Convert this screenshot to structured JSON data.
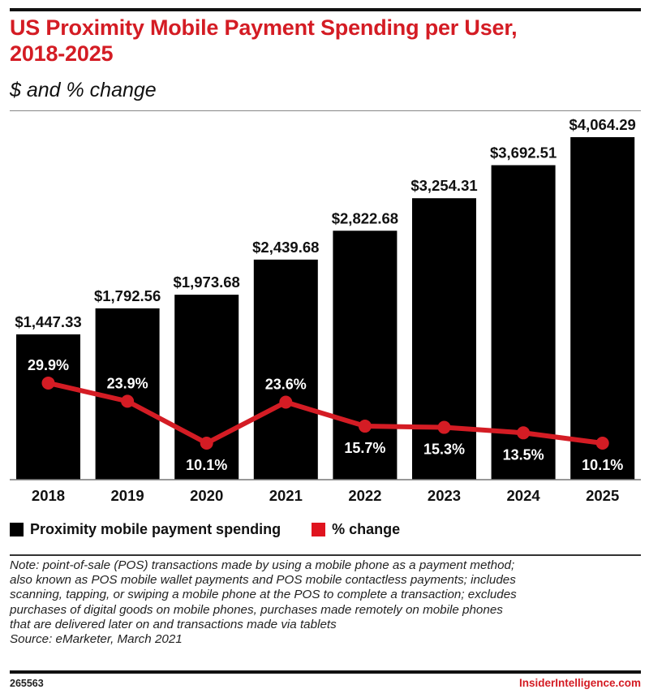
{
  "header": {
    "title_line1": "US Proximity Mobile Payment Spending per User,",
    "title_line2": "2018-2025",
    "subtitle": "$ and % change"
  },
  "colors": {
    "accent": "#d41c24",
    "bar": "#000000",
    "text": "#111111"
  },
  "chart_data": {
    "type": "bar",
    "title": "US Proximity Mobile Payment Spending per User, 2018-2025",
    "subtitle": "$ and % change",
    "xlabel": "",
    "ylabel": "",
    "grid": false,
    "categories": [
      "2018",
      "2019",
      "2020",
      "2021",
      "2022",
      "2023",
      "2024",
      "2025"
    ],
    "series": [
      {
        "name": "Proximity mobile payment spending",
        "type": "bar",
        "color": "#000000",
        "values": [
          1447.33,
          1792.56,
          1973.68,
          2439.68,
          2822.68,
          3254.31,
          3692.51,
          4064.29
        ],
        "labels": [
          "$1,447.33",
          "$1,792.56",
          "$1,973.68",
          "$2,439.68",
          "$2,822.68",
          "$3,254.31",
          "$3,692.51",
          "$4,064.29"
        ]
      },
      {
        "name": "% change",
        "type": "line",
        "color": "#d41c24",
        "values": [
          29.9,
          23.9,
          10.1,
          23.6,
          15.7,
          15.3,
          13.5,
          10.1
        ],
        "labels": [
          "29.9%",
          "23.9%",
          "10.1%",
          "23.6%",
          "15.7%",
          "15.3%",
          "13.5%",
          "10.1%"
        ],
        "label_position": [
          "above",
          "above",
          "below",
          "above",
          "below",
          "below",
          "below",
          "below"
        ]
      }
    ],
    "legend": {
      "placement": "bottom-left",
      "entries": [
        "Proximity mobile payment spending",
        "% change"
      ]
    }
  },
  "footer": {
    "note_lines": [
      "Note: point-of-sale (POS) transactions made by using a mobile phone as a payment method;",
      "also known as POS mobile wallet payments and POS mobile contactless payments; includes",
      "scanning, tapping, or swiping a mobile phone at the POS to complete a transaction; excludes",
      "purchases of digital goods on mobile phones, purchases made remotely on mobile phones",
      "that are delivered later on and transactions made via tablets"
    ],
    "source": "Source: eMarketer, March 2021",
    "chart_id": "265563",
    "brand": "InsiderIntelligence.com"
  }
}
